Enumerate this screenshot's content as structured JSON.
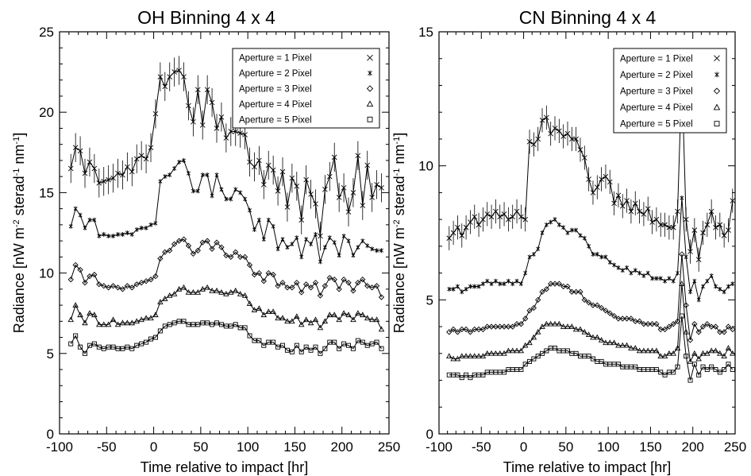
{
  "chart_data": [
    {
      "type": "line",
      "title": "OH Binning 4 x 4",
      "xlabel": "Time relative to impact [hr]",
      "ylabel_parts": [
        "Radiance [nW m",
        "-2",
        " sterad",
        "-1",
        " nm",
        "-1",
        "]"
      ],
      "xlim": [
        -100,
        250
      ],
      "ylim": [
        0,
        25
      ],
      "xticks": [
        -100,
        -50,
        0,
        50,
        100,
        150,
        200,
        250
      ],
      "yticks": [
        0,
        5,
        10,
        15,
        20,
        25
      ],
      "grid": false,
      "legend_position": "top-right",
      "x": [
        -88,
        -83,
        -78,
        -73,
        -68,
        -63,
        -58,
        -53,
        -48,
        -43,
        -38,
        -33,
        -28,
        -23,
        -18,
        -13,
        -8,
        -3,
        2,
        7,
        12,
        17,
        22,
        27,
        32,
        37,
        42,
        47,
        52,
        57,
        62,
        67,
        72,
        77,
        82,
        87,
        92,
        97,
        102,
        107,
        112,
        117,
        122,
        127,
        132,
        137,
        142,
        147,
        152,
        157,
        162,
        167,
        172,
        177,
        182,
        187,
        192,
        197,
        202,
        207,
        212,
        217,
        222,
        227,
        232,
        237,
        242
      ],
      "series": [
        {
          "name": "Aperture =  1 Pixel",
          "marker": "x",
          "errorbars": true,
          "values": [
            16.5,
            17.8,
            17.6,
            16.2,
            16.9,
            16.5,
            15.6,
            15.7,
            15.8,
            15.9,
            16.2,
            16.1,
            16.6,
            16.3,
            17.1,
            17.3,
            17.1,
            17.8,
            19.9,
            22.2,
            21.6,
            22.2,
            22.5,
            22.6,
            22.2,
            20.4,
            19.4,
            21.4,
            19.2,
            21.4,
            20.6,
            19.0,
            19.7,
            18.4,
            18.8,
            18.8,
            18.7,
            18.6,
            16.9,
            16.6,
            17.0,
            15.5,
            16.7,
            16.4,
            15.1,
            16.3,
            14.1,
            15.9,
            15.4,
            13.3,
            15.8,
            14.9,
            14.3,
            12.3,
            15.2,
            16.0,
            17.2,
            14.7,
            15.3,
            13.8,
            15.0,
            17.3,
            14.2,
            16.7,
            14.7,
            15.5,
            15.3
          ]
        },
        {
          "name": "Aperture =  2 Pixel",
          "marker": "asterisk",
          "errorbars": false,
          "values": [
            12.9,
            14.0,
            13.6,
            12.8,
            13.3,
            13.3,
            12.3,
            12.4,
            12.3,
            12.3,
            12.4,
            12.4,
            12.5,
            12.4,
            12.7,
            12.8,
            12.8,
            13.0,
            13.1,
            15.7,
            16.0,
            16.1,
            16.5,
            16.9,
            17.0,
            16.2,
            15.1,
            15.1,
            16.1,
            16.1,
            14.8,
            16.1,
            15.2,
            14.6,
            14.6,
            15.2,
            15.0,
            14.6,
            13.9,
            12.7,
            13.3,
            12.1,
            13.3,
            12.9,
            11.5,
            12.1,
            11.6,
            11.8,
            12.2,
            11.0,
            12.1,
            11.8,
            12.4,
            10.7,
            11.6,
            12.2,
            11.9,
            11.1,
            12.3,
            12.0,
            11.1,
            11.6,
            12.0,
            11.7,
            11.5,
            11.4,
            11.4
          ]
        },
        {
          "name": "Aperture =  3 Pixel",
          "marker": "diamond",
          "errorbars": false,
          "values": [
            9.6,
            10.5,
            10.2,
            9.4,
            9.8,
            9.9,
            9.3,
            9.2,
            9.1,
            9.2,
            9.1,
            9.0,
            9.2,
            9.1,
            9.3,
            9.4,
            9.5,
            9.6,
            9.8,
            10.9,
            11.3,
            11.4,
            11.8,
            12.0,
            12.1,
            11.7,
            11.2,
            11.4,
            11.9,
            12.0,
            11.5,
            11.9,
            11.6,
            11.1,
            11.0,
            11.3,
            11.0,
            11.0,
            10.5,
            9.9,
            10.0,
            9.5,
            10.0,
            9.9,
            9.2,
            9.4,
            9.1,
            9.1,
            9.4,
            8.8,
            9.3,
            9.1,
            9.4,
            8.6,
            9.2,
            9.7,
            9.6,
            9.0,
            9.6,
            9.4,
            8.9,
            9.4,
            9.6,
            9.2,
            9.1,
            9.2,
            8.5
          ]
        },
        {
          "name": "Aperture =  4 Pixel",
          "marker": "triangle",
          "errorbars": false,
          "values": [
            7.1,
            8.0,
            7.4,
            6.9,
            7.5,
            7.4,
            6.8,
            6.8,
            6.8,
            7.1,
            6.8,
            6.9,
            6.9,
            6.9,
            7.0,
            7.1,
            7.2,
            7.2,
            7.4,
            8.2,
            8.4,
            8.6,
            8.7,
            9.0,
            9.1,
            8.8,
            8.8,
            8.8,
            9.0,
            9.1,
            8.9,
            8.9,
            8.8,
            8.7,
            8.8,
            8.9,
            8.7,
            8.6,
            8.1,
            7.7,
            7.8,
            7.4,
            7.6,
            7.6,
            7.2,
            7.2,
            7.0,
            7.0,
            7.3,
            6.8,
            7.1,
            6.9,
            7.1,
            6.6,
            7.0,
            7.4,
            7.4,
            7.1,
            7.5,
            7.4,
            7.1,
            7.5,
            7.4,
            7.2,
            7.1,
            7.1,
            6.5
          ]
        },
        {
          "name": "Aperture =  5 Pixel",
          "marker": "square",
          "errorbars": false,
          "values": [
            5.6,
            6.1,
            5.4,
            5.0,
            5.5,
            5.6,
            5.4,
            5.3,
            5.4,
            5.4,
            5.3,
            5.3,
            5.4,
            5.3,
            5.5,
            5.6,
            5.7,
            5.9,
            6.0,
            6.4,
            6.7,
            6.8,
            6.9,
            7.0,
            7.0,
            6.8,
            6.8,
            6.8,
            6.9,
            6.9,
            6.8,
            6.9,
            6.8,
            6.7,
            6.7,
            6.8,
            6.6,
            6.6,
            6.1,
            5.8,
            5.8,
            5.5,
            5.7,
            5.7,
            5.4,
            5.5,
            5.2,
            5.1,
            5.5,
            5.1,
            5.4,
            5.2,
            5.4,
            5.0,
            5.3,
            5.7,
            5.7,
            5.3,
            5.6,
            5.5,
            5.3,
            5.8,
            5.7,
            5.5,
            5.6,
            5.7,
            5.3
          ]
        }
      ]
    },
    {
      "type": "line",
      "title": "CN Binning 4 x 4",
      "xlabel": "Time relative to impact [hr]",
      "ylabel_parts": [
        "Radiance [nW m",
        "-2",
        " sterad",
        "-1",
        " nm",
        "-1",
        "]"
      ],
      "xlim": [
        -100,
        250
      ],
      "ylim": [
        0,
        15
      ],
      "xticks": [
        -100,
        -50,
        0,
        50,
        100,
        150,
        200,
        250
      ],
      "yticks": [
        0,
        5,
        10,
        15
      ],
      "grid": false,
      "legend_position": "top-right",
      "x": [
        -88,
        -83,
        -78,
        -73,
        -68,
        -63,
        -58,
        -53,
        -48,
        -43,
        -38,
        -33,
        -28,
        -23,
        -18,
        -13,
        -8,
        -3,
        2,
        7,
        12,
        17,
        22,
        27,
        32,
        37,
        42,
        47,
        52,
        57,
        62,
        67,
        72,
        77,
        82,
        87,
        92,
        97,
        102,
        107,
        112,
        117,
        122,
        127,
        132,
        137,
        142,
        147,
        152,
        157,
        162,
        167,
        172,
        177,
        182,
        187,
        192,
        197,
        202,
        207,
        212,
        217,
        222,
        227,
        232,
        237,
        242,
        247
      ],
      "series": [
        {
          "name": "Aperture =  1 Pixel",
          "marker": "x",
          "errorbars": true,
          "values": [
            7.3,
            7.5,
            7.7,
            7.4,
            7.7,
            7.9,
            8.1,
            7.8,
            8.0,
            8.2,
            8.1,
            8.3,
            8.1,
            8.2,
            8.0,
            8.1,
            8.3,
            8.1,
            8.0,
            10.9,
            10.8,
            11.0,
            11.7,
            11.8,
            11.2,
            11.4,
            11.3,
            11.1,
            11.2,
            11.0,
            11.0,
            10.6,
            10.3,
            9.5,
            9.0,
            9.2,
            9.5,
            9.6,
            9.4,
            8.6,
            8.9,
            8.5,
            8.7,
            8.3,
            8.6,
            8.3,
            8.2,
            8.4,
            7.9,
            8.0,
            7.8,
            7.8,
            7.7,
            7.7,
            8.3,
            13.4,
            8.0,
            6.8,
            7.6,
            6.5,
            7.5,
            7.8,
            8.3,
            7.7,
            7.8,
            7.4,
            7.6,
            8.7
          ]
        },
        {
          "name": "Aperture =  2 Pixel",
          "marker": "asterisk",
          "errorbars": false,
          "values": [
            5.4,
            5.4,
            5.5,
            5.3,
            5.4,
            5.5,
            5.5,
            5.5,
            5.6,
            5.7,
            5.6,
            5.7,
            5.6,
            5.6,
            5.7,
            5.6,
            5.7,
            5.6,
            6.0,
            6.6,
            6.7,
            6.9,
            7.5,
            7.8,
            7.9,
            8.0,
            7.8,
            7.7,
            7.5,
            7.6,
            7.6,
            7.4,
            7.3,
            7.0,
            6.7,
            6.7,
            6.6,
            6.6,
            6.4,
            6.3,
            6.2,
            6.1,
            6.2,
            6.0,
            6.1,
            6.0,
            5.9,
            6.0,
            5.8,
            5.8,
            5.8,
            5.7,
            5.8,
            5.7,
            6.0,
            8.8,
            6.6,
            5.3,
            5.7,
            5.0,
            5.5,
            5.7,
            5.9,
            5.5,
            5.4,
            5.3,
            5.5,
            5.6
          ]
        },
        {
          "name": "Aperture =  3 Pixel",
          "marker": "diamond",
          "errorbars": false,
          "values": [
            3.8,
            3.9,
            3.8,
            3.9,
            3.9,
            3.8,
            3.9,
            3.9,
            3.9,
            4.0,
            4.0,
            4.0,
            4.0,
            4.0,
            4.0,
            4.0,
            4.1,
            4.1,
            4.3,
            4.6,
            4.7,
            5.0,
            5.3,
            5.4,
            5.6,
            5.6,
            5.6,
            5.5,
            5.5,
            5.3,
            5.3,
            5.3,
            5.0,
            4.9,
            4.8,
            4.8,
            4.7,
            4.6,
            4.5,
            4.4,
            4.3,
            4.3,
            4.3,
            4.3,
            4.2,
            4.2,
            4.1,
            4.1,
            4.1,
            4.1,
            3.9,
            3.9,
            4.0,
            4.1,
            4.2,
            6.7,
            4.8,
            3.5,
            4.1,
            3.8,
            4.0,
            4.1,
            4.0,
            4.0,
            3.8,
            3.8,
            4.0,
            3.9
          ]
        },
        {
          "name": "Aperture =  4 Pixel",
          "marker": "triangle",
          "errorbars": false,
          "values": [
            2.9,
            2.8,
            2.8,
            2.9,
            2.9,
            2.9,
            2.9,
            2.9,
            2.9,
            3.0,
            3.0,
            3.0,
            3.0,
            3.0,
            3.1,
            3.1,
            3.1,
            3.1,
            3.3,
            3.4,
            3.6,
            3.8,
            4.0,
            4.1,
            4.1,
            4.1,
            4.1,
            4.0,
            4.0,
            4.0,
            3.9,
            3.9,
            3.8,
            3.7,
            3.6,
            3.6,
            3.5,
            3.4,
            3.4,
            3.4,
            3.3,
            3.3,
            3.3,
            3.2,
            3.2,
            3.1,
            3.1,
            3.1,
            3.1,
            3.1,
            2.9,
            2.9,
            3.0,
            3.0,
            3.2,
            5.6,
            3.8,
            2.7,
            3.0,
            2.8,
            3.0,
            3.0,
            3.1,
            3.1,
            3.0,
            2.9,
            3.2,
            3.0
          ]
        },
        {
          "name": "Aperture =  5 Pixel",
          "marker": "square",
          "errorbars": false,
          "values": [
            2.2,
            2.2,
            2.2,
            2.1,
            2.2,
            2.1,
            2.2,
            2.2,
            2.2,
            2.3,
            2.3,
            2.3,
            2.3,
            2.3,
            2.4,
            2.4,
            2.4,
            2.4,
            2.6,
            2.7,
            2.8,
            2.9,
            3.0,
            3.1,
            3.2,
            3.2,
            3.1,
            3.1,
            3.1,
            3.0,
            3.0,
            2.9,
            2.9,
            2.9,
            2.8,
            2.7,
            2.7,
            2.6,
            2.6,
            2.6,
            2.6,
            2.5,
            2.5,
            2.5,
            2.5,
            2.4,
            2.4,
            2.4,
            2.4,
            2.4,
            2.3,
            2.2,
            2.3,
            2.3,
            2.5,
            4.4,
            2.9,
            2.0,
            2.6,
            2.2,
            2.5,
            2.4,
            2.5,
            2.4,
            2.3,
            2.4,
            2.6,
            2.4
          ]
        }
      ]
    }
  ]
}
